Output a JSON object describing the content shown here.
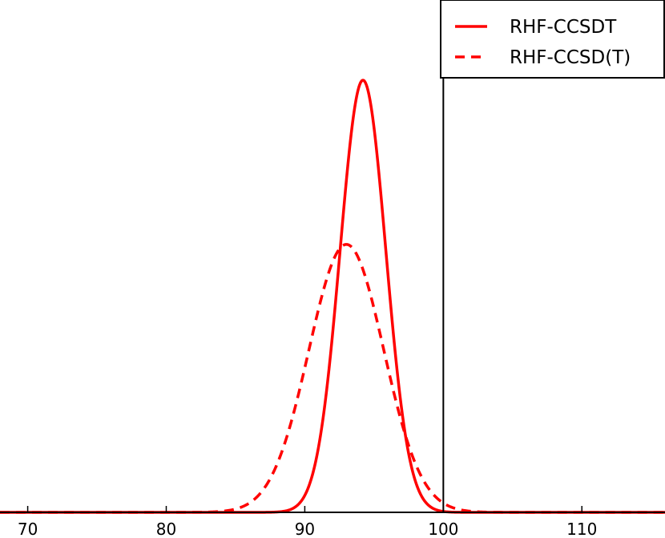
{
  "chart_data": {
    "type": "line",
    "title": "",
    "xlabel": "",
    "ylabel": "",
    "xlim": [
      68,
      116
    ],
    "ylim": [
      0,
      1
    ],
    "x_ticks": [
      70,
      80,
      90,
      100,
      110
    ],
    "x_tick_labels": [
      "70",
      "80",
      "90",
      "100",
      "110"
    ],
    "y_ticks_visible": false,
    "grid": false,
    "legend_placement": "top-right",
    "reference_line": {
      "x": 100,
      "color": "#000000"
    },
    "series": [
      {
        "name": "RHF-CCSDT",
        "color": "#ff0000",
        "linestyle": "solid",
        "distribution": "gaussian",
        "mean": 94.2,
        "std": 1.65,
        "peak": 1.0
      },
      {
        "name": "RHF-CCSD(T)",
        "color": "#ff0000",
        "linestyle": "dashed",
        "distribution": "gaussian",
        "mean": 93.0,
        "std": 2.7,
        "peak": 0.62
      }
    ]
  }
}
